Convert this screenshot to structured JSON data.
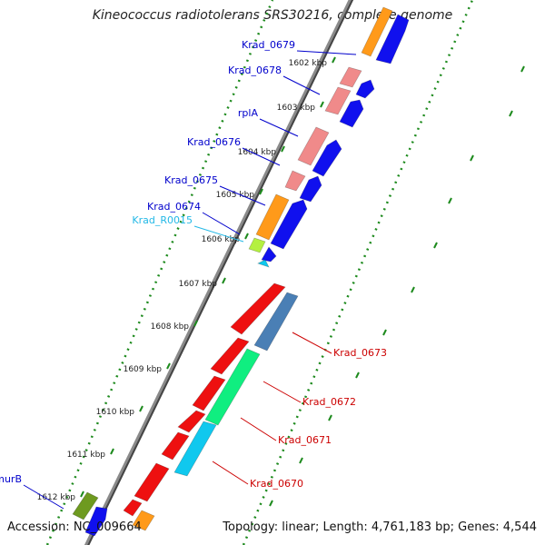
{
  "title": "Kineococcus radiotolerans SRS30216, complete genome",
  "footer": {
    "accession": "Accession: NC_009664",
    "summary": "Topology: linear; Length: 4,761,183 bp; Genes: 4,544"
  },
  "colors": {
    "background": "#ffffff",
    "backbone": "#8a8a8a",
    "ticks": "#1d8a1d",
    "forward_label": "#0000cc",
    "reverse_label": "#cc0000",
    "rna_label": "#22b8e6",
    "cds_orange": "#ff9a1a",
    "cds_blue": "#1010ee",
    "cds_pink": "#f08a8a",
    "cds_red": "#ee1010",
    "cds_steelblue": "#4a7fb5",
    "cds_green": "#10ee80",
    "cds_cyan": "#10c8ee",
    "cds_lime": "#b4f040",
    "cds_olive": "#6e9a20"
  },
  "kbp_labels": [
    "1602 kbp",
    "1603 kbp",
    "1604 kbp",
    "1605 kbp",
    "1606 kbp",
    "1607 kbp",
    "1608 kbp",
    "1609 kbp",
    "1610 kbp",
    "1611 kbp",
    "1612 kbp"
  ],
  "gene_labels": [
    {
      "text": "Krad_0679",
      "strand": "forward"
    },
    {
      "text": "Krad_0678",
      "strand": "forward"
    },
    {
      "text": "rplA",
      "strand": "forward"
    },
    {
      "text": "Krad_0676",
      "strand": "forward"
    },
    {
      "text": "Krad_0675",
      "strand": "forward"
    },
    {
      "text": "Krad_0674",
      "strand": "forward"
    },
    {
      "text": "Krad_R0015",
      "strand": "rna"
    },
    {
      "text": "Krad_0673",
      "strand": "reverse"
    },
    {
      "text": "Krad_0672",
      "strand": "reverse"
    },
    {
      "text": "Krad_0671",
      "strand": "reverse"
    },
    {
      "text": "Krad_0670",
      "strand": "reverse"
    },
    {
      "text": "murB",
      "strand": "forward"
    }
  ]
}
